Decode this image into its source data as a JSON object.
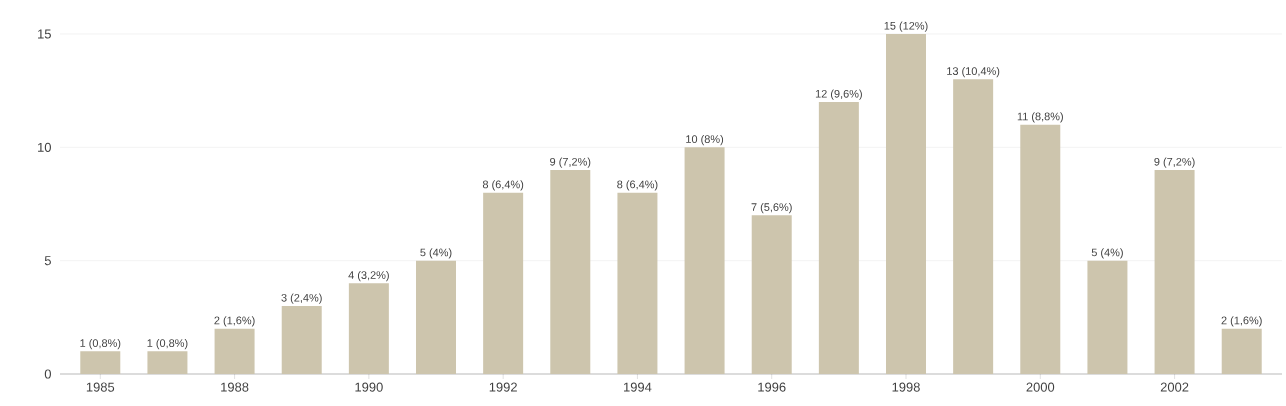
{
  "chart_data": {
    "type": "bar",
    "categories": [
      "1985",
      null,
      "1988",
      null,
      "1990",
      null,
      "1992",
      null,
      "1994",
      null,
      "1996",
      null,
      "1998",
      null,
      "2000",
      null,
      "2002",
      null
    ],
    "values": [
      1,
      1,
      2,
      3,
      4,
      5,
      8,
      9,
      8,
      10,
      7,
      12,
      15,
      13,
      11,
      5,
      9,
      2
    ],
    "value_labels": [
      "1 (0,8%)",
      "1 (0,8%)",
      "2 (1,6%)",
      "3 (2,4%)",
      "4 (3,2%)",
      "5 (4%)",
      "8 (6,4%)",
      "9 (7,2%)",
      "8 (6,4%)",
      "10 (8%)",
      "7 (5,6%)",
      "12 (9,6%)",
      "15 (12%)",
      "13 (10,4%)",
      "11 (8,8%)",
      "5 (4%)",
      "9 (7,2%)",
      "2 (1,6%)"
    ],
    "color": "#cdc5ad",
    "ylim": [
      0,
      15
    ],
    "yticks": [
      0,
      5,
      10,
      15
    ],
    "grid": "y"
  }
}
